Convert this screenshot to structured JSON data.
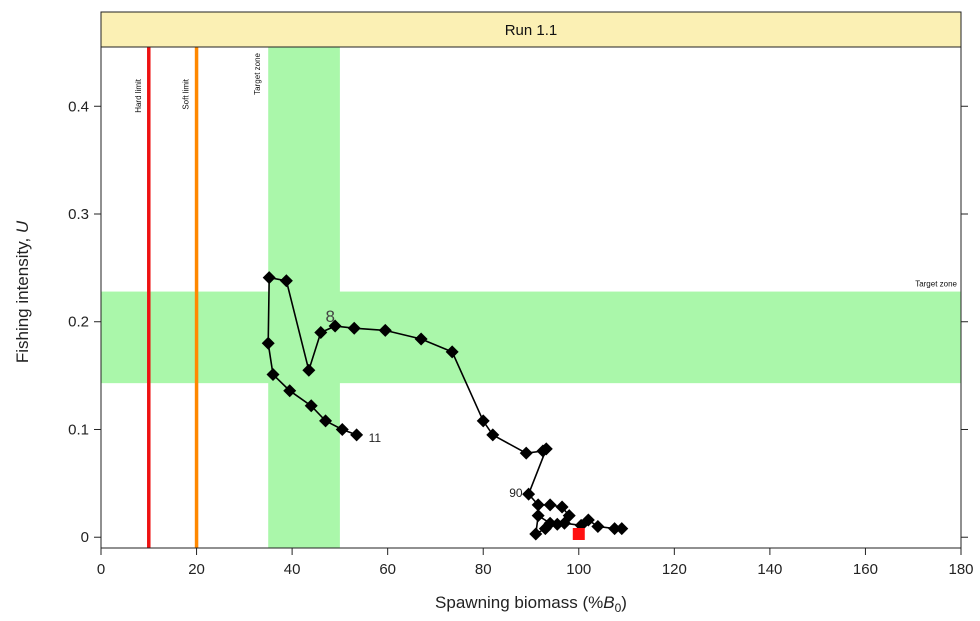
{
  "chart_data": {
    "type": "scatter",
    "title": "Run 1.1",
    "xlabel": "Spawning biomass (%",
    "xlabel_symbol": "B",
    "xlabel_subscript": "0",
    "xlabel_suffix": ")",
    "ylabel": "Fishing intensity, ",
    "ylabel_symbol": "U",
    "xlim": [
      0,
      180
    ],
    "ylim": [
      -0.01,
      0.455
    ],
    "xticks": [
      0,
      20,
      40,
      60,
      80,
      100,
      120,
      140,
      160,
      180
    ],
    "yticks": [
      0,
      0.1,
      0.2,
      0.3,
      0.4
    ],
    "ytick_labels": [
      "0",
      "0.1",
      "0.2",
      "0.3",
      "0.4"
    ],
    "reference_lines": [
      {
        "label": "Hard limit",
        "x": 10,
        "color": "#ee1111"
      },
      {
        "label": "Soft limit",
        "x": 20,
        "color": "#ff8800"
      }
    ],
    "target_zones": [
      {
        "label": "Target zone",
        "orientation": "vertical",
        "range": [
          35,
          50
        ],
        "color": "#aaf7aa"
      },
      {
        "label": "Target zone",
        "orientation": "horizontal",
        "range": [
          0.143,
          0.228
        ],
        "color": "#aaf7aa"
      }
    ],
    "trajectory": {
      "color": "#000000",
      "points": [
        [
          53.5,
          0.095
        ],
        [
          50.5,
          0.1
        ],
        [
          47,
          0.108
        ],
        [
          44,
          0.122
        ],
        [
          39.5,
          0.136
        ],
        [
          36,
          0.151
        ],
        [
          35,
          0.18
        ],
        [
          35.2,
          0.241
        ],
        [
          38.8,
          0.238
        ],
        [
          43.5,
          0.155
        ],
        [
          46,
          0.19
        ],
        [
          49,
          0.196
        ],
        [
          53,
          0.194
        ],
        [
          59.5,
          0.192
        ],
        [
          67,
          0.184
        ],
        [
          73.5,
          0.172
        ],
        [
          80,
          0.108
        ],
        [
          82,
          0.095
        ],
        [
          89,
          0.078
        ],
        [
          92.5,
          0.08
        ],
        [
          93.2,
          0.082
        ],
        [
          89.5,
          0.04
        ],
        [
          91.5,
          0.03
        ],
        [
          94,
          0.03
        ],
        [
          96.5,
          0.028
        ],
        [
          98,
          0.02
        ],
        [
          95.5,
          0.012
        ],
        [
          93,
          0.008
        ],
        [
          91,
          0.003
        ],
        [
          91.5,
          0.02
        ],
        [
          94,
          0.013
        ],
        [
          97,
          0.013
        ],
        [
          100.5,
          0.011
        ],
        [
          102,
          0.016
        ],
        [
          104,
          0.01
        ],
        [
          107.5,
          0.008
        ],
        [
          109,
          0.008
        ]
      ]
    },
    "current_point": {
      "x": 100,
      "y": 0.003,
      "color": "#ff1111"
    },
    "point_labels": [
      {
        "text": "11",
        "x": 53.5,
        "y": 0.095
      },
      {
        "text": "90",
        "x": 89.5,
        "y": 0.04
      }
    ],
    "annotations": [
      {
        "text": "8",
        "x": 49.5,
        "y": 0.196
      }
    ]
  }
}
